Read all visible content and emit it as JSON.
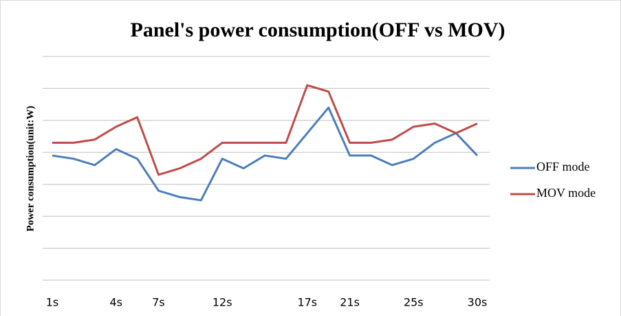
{
  "chart_data": {
    "type": "line",
    "title": "Panel's power consumption(OFF vs MOV)",
    "y_label": "Power consumption(unit:W)",
    "categories": [
      "1s",
      null,
      null,
      "4s",
      null,
      "7s",
      null,
      null,
      "12s",
      null,
      null,
      null,
      "17s",
      null,
      "21s",
      null,
      null,
      "25s",
      null,
      null,
      "30s"
    ],
    "series": [
      {
        "name": "OFF mode",
        "color": "#4a7ebb",
        "values": [
          3.9,
          3.8,
          3.6,
          4.1,
          3.8,
          2.8,
          2.6,
          2.5,
          3.8,
          3.5,
          3.9,
          3.8,
          4.6,
          5.4,
          3.9,
          3.9,
          3.6,
          3.8,
          4.3,
          4.6,
          3.9
        ]
      },
      {
        "name": "MOV mode",
        "color": "#be4b48",
        "values": [
          4.3,
          4.3,
          4.4,
          4.8,
          5.1,
          3.3,
          3.5,
          3.8,
          4.3,
          4.3,
          4.3,
          4.3,
          6.1,
          5.9,
          4.3,
          4.3,
          4.4,
          4.8,
          4.9,
          4.6,
          4.9
        ]
      }
    ],
    "ylim": [
      0,
      7
    ],
    "yticks": [
      0,
      1,
      2,
      3,
      4,
      5,
      6,
      7
    ],
    "grid": true,
    "legend": "right"
  }
}
